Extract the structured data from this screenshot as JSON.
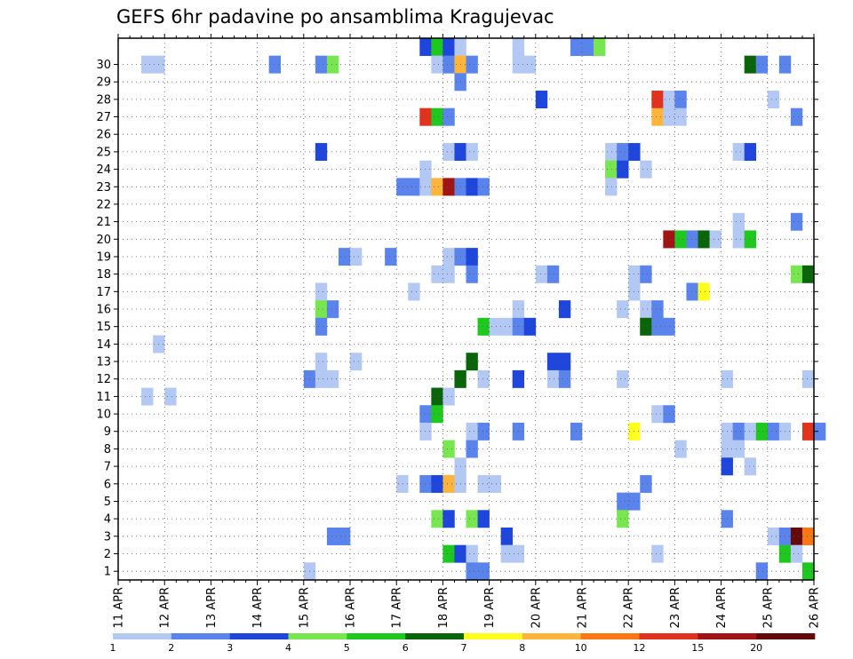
{
  "chart_data": {
    "type": "heatmap",
    "title": "GEFS 6hr padavine po ansamblima Kragujevac",
    "y_ticks": [
      "1",
      "2",
      "3",
      "4",
      "5",
      "6",
      "7",
      "8",
      "9",
      "10",
      "11",
      "12",
      "13",
      "14",
      "15",
      "16",
      "17",
      "18",
      "19",
      "20",
      "21",
      "22",
      "23",
      "24",
      "25",
      "26",
      "27",
      "28",
      "29",
      "30"
    ],
    "x_ticks": [
      "11 APR",
      "12 APR",
      "13 APR",
      "14 APR",
      "15 APR",
      "16 APR",
      "17 APR",
      "18 APR",
      "19 APR",
      "20 APR",
      "21 APR",
      "22 APR",
      "23 APR",
      "24 APR",
      "25 APR",
      "26 APR"
    ],
    "grid": true,
    "colorbar": {
      "labels": [
        "1",
        "2",
        "3",
        "4",
        "5",
        "6",
        "7",
        "8",
        "10",
        "12",
        "15",
        "20"
      ],
      "colors": [
        "#b4c8f4",
        "#5a84ec",
        "#1e46dc",
        "#78e650",
        "#1ec81e",
        "#0a640a",
        "#ffff1e",
        "#ffb43c",
        "#fa7814",
        "#e1321e",
        "#a01414",
        "#640a0a"
      ]
    },
    "cells": [
      {
        "m": 30,
        "t": 26,
        "v": 3
      },
      {
        "m": 30,
        "t": 27,
        "v": 5
      },
      {
        "m": 30,
        "t": 28,
        "v": 3
      },
      {
        "m": 30,
        "t": 29,
        "v": 1
      },
      {
        "m": 30,
        "t": 34,
        "v": 1
      },
      {
        "m": 30,
        "t": 39,
        "v": 2
      },
      {
        "m": 30,
        "t": 40,
        "v": 2
      },
      {
        "m": 30,
        "t": 41,
        "v": 4
      },
      {
        "m": 29,
        "t": 2,
        "v": 1
      },
      {
        "m": 29,
        "t": 3,
        "v": 1
      },
      {
        "m": 29,
        "t": 13,
        "v": 2
      },
      {
        "m": 29,
        "t": 17,
        "v": 2
      },
      {
        "m": 29,
        "t": 18,
        "v": 4
      },
      {
        "m": 29,
        "t": 27,
        "v": 1
      },
      {
        "m": 29,
        "t": 28,
        "v": 2
      },
      {
        "m": 29,
        "t": 29,
        "v": 8
      },
      {
        "m": 29,
        "t": 30,
        "v": 2
      },
      {
        "m": 29,
        "t": 34,
        "v": 1
      },
      {
        "m": 29,
        "t": 35,
        "v": 1
      },
      {
        "m": 29,
        "t": 54,
        "v": 6
      },
      {
        "m": 29,
        "t": 55,
        "v": 2
      },
      {
        "m": 29,
        "t": 57,
        "v": 2
      },
      {
        "m": 28,
        "t": 29,
        "v": 2
      },
      {
        "m": 27,
        "t": 36,
        "v": 3
      },
      {
        "m": 27,
        "t": 46,
        "v": 12
      },
      {
        "m": 27,
        "t": 47,
        "v": 1
      },
      {
        "m": 27,
        "t": 48,
        "v": 2
      },
      {
        "m": 27,
        "t": 56,
        "v": 1
      },
      {
        "m": 26,
        "t": 26,
        "v": 12
      },
      {
        "m": 26,
        "t": 27,
        "v": 5
      },
      {
        "m": 26,
        "t": 28,
        "v": 2
      },
      {
        "m": 26,
        "t": 46,
        "v": 8
      },
      {
        "m": 26,
        "t": 47,
        "v": 1
      },
      {
        "m": 26,
        "t": 48,
        "v": 1
      },
      {
        "m": 26,
        "t": 58,
        "v": 2
      },
      {
        "m": 24,
        "t": 17,
        "v": 3
      },
      {
        "m": 24,
        "t": 28,
        "v": 1
      },
      {
        "m": 24,
        "t": 29,
        "v": 3
      },
      {
        "m": 24,
        "t": 30,
        "v": 1
      },
      {
        "m": 24,
        "t": 42,
        "v": 1
      },
      {
        "m": 24,
        "t": 43,
        "v": 2
      },
      {
        "m": 24,
        "t": 44,
        "v": 3
      },
      {
        "m": 24,
        "t": 53,
        "v": 1
      },
      {
        "m": 24,
        "t": 54,
        "v": 3
      },
      {
        "m": 23,
        "t": 26,
        "v": 1
      },
      {
        "m": 23,
        "t": 42,
        "v": 4
      },
      {
        "m": 23,
        "t": 43,
        "v": 3
      },
      {
        "m": 23,
        "t": 45,
        "v": 1
      },
      {
        "m": 22,
        "t": 24,
        "v": 2
      },
      {
        "m": 22,
        "t": 25,
        "v": 2
      },
      {
        "m": 22,
        "t": 26,
        "v": 1
      },
      {
        "m": 22,
        "t": 27,
        "v": 8
      },
      {
        "m": 22,
        "t": 28,
        "v": 15
      },
      {
        "m": 22,
        "t": 29,
        "v": 2
      },
      {
        "m": 22,
        "t": 30,
        "v": 3
      },
      {
        "m": 22,
        "t": 31,
        "v": 2
      },
      {
        "m": 22,
        "t": 42,
        "v": 1
      },
      {
        "m": 20,
        "t": 53,
        "v": 1
      },
      {
        "m": 20,
        "t": 58,
        "v": 2
      },
      {
        "m": 19,
        "t": 47,
        "v": 15
      },
      {
        "m": 19,
        "t": 48,
        "v": 5
      },
      {
        "m": 19,
        "t": 49,
        "v": 2
      },
      {
        "m": 19,
        "t": 50,
        "v": 6
      },
      {
        "m": 19,
        "t": 51,
        "v": 1
      },
      {
        "m": 19,
        "t": 53,
        "v": 1
      },
      {
        "m": 19,
        "t": 54,
        "v": 5
      },
      {
        "m": 18,
        "t": 19,
        "v": 2
      },
      {
        "m": 18,
        "t": 20,
        "v": 1
      },
      {
        "m": 18,
        "t": 23,
        "v": 2
      },
      {
        "m": 18,
        "t": 28,
        "v": 1
      },
      {
        "m": 18,
        "t": 29,
        "v": 2
      },
      {
        "m": 18,
        "t": 30,
        "v": 3
      },
      {
        "m": 17,
        "t": 28,
        "v": 1
      },
      {
        "m": 17,
        "t": 27,
        "v": 1
      },
      {
        "m": 17,
        "t": 30,
        "v": 2
      },
      {
        "m": 17,
        "t": 36,
        "v": 1
      },
      {
        "m": 17,
        "t": 37,
        "v": 2
      },
      {
        "m": 17,
        "t": 44,
        "v": 1
      },
      {
        "m": 17,
        "t": 45,
        "v": 2
      },
      {
        "m": 17,
        "t": 58,
        "v": 4
      },
      {
        "m": 17,
        "t": 59,
        "v": 6
      },
      {
        "m": 16,
        "t": 17,
        "v": 1
      },
      {
        "m": 16,
        "t": 25,
        "v": 1
      },
      {
        "m": 16,
        "t": 44,
        "v": 1
      },
      {
        "m": 16,
        "t": 49,
        "v": 2
      },
      {
        "m": 16,
        "t": 50,
        "v": 7
      },
      {
        "m": 15,
        "t": 17,
        "v": 4
      },
      {
        "m": 15,
        "t": 18,
        "v": 2
      },
      {
        "m": 15,
        "t": 34,
        "v": 1
      },
      {
        "m": 15,
        "t": 38,
        "v": 3
      },
      {
        "m": 15,
        "t": 43,
        "v": 1
      },
      {
        "m": 15,
        "t": 45,
        "v": 1
      },
      {
        "m": 15,
        "t": 46,
        "v": 2
      },
      {
        "m": 14,
        "t": 17,
        "v": 2
      },
      {
        "m": 14,
        "t": 31,
        "v": 5
      },
      {
        "m": 14,
        "t": 32,
        "v": 1
      },
      {
        "m": 14,
        "t": 33,
        "v": 1
      },
      {
        "m": 14,
        "t": 34,
        "v": 2
      },
      {
        "m": 14,
        "t": 35,
        "v": 3
      },
      {
        "m": 14,
        "t": 45,
        "v": 6
      },
      {
        "m": 14,
        "t": 46,
        "v": 2
      },
      {
        "m": 14,
        "t": 47,
        "v": 2
      },
      {
        "m": 13,
        "t": 3,
        "v": 1
      },
      {
        "m": 12,
        "t": 17,
        "v": 1
      },
      {
        "m": 12,
        "t": 20,
        "v": 1
      },
      {
        "m": 12,
        "t": 30,
        "v": 6
      },
      {
        "m": 12,
        "t": 37,
        "v": 3
      },
      {
        "m": 12,
        "t": 38,
        "v": 3
      },
      {
        "m": 11,
        "t": 16,
        "v": 2
      },
      {
        "m": 11,
        "t": 17,
        "v": 1
      },
      {
        "m": 11,
        "t": 18,
        "v": 1
      },
      {
        "m": 11,
        "t": 29,
        "v": 6
      },
      {
        "m": 11,
        "t": 31,
        "v": 1
      },
      {
        "m": 11,
        "t": 34,
        "v": 3
      },
      {
        "m": 11,
        "t": 37,
        "v": 1
      },
      {
        "m": 11,
        "t": 38,
        "v": 2
      },
      {
        "m": 11,
        "t": 43,
        "v": 1
      },
      {
        "m": 11,
        "t": 52,
        "v": 1
      },
      {
        "m": 11,
        "t": 59,
        "v": 1
      },
      {
        "m": 10,
        "t": 2,
        "v": 1
      },
      {
        "m": 10,
        "t": 4,
        "v": 1
      },
      {
        "m": 10,
        "t": 27,
        "v": 6
      },
      {
        "m": 10,
        "t": 28,
        "v": 1
      },
      {
        "m": 9,
        "t": 26,
        "v": 2
      },
      {
        "m": 9,
        "t": 27,
        "v": 5
      },
      {
        "m": 9,
        "t": 46,
        "v": 1
      },
      {
        "m": 9,
        "t": 47,
        "v": 2
      },
      {
        "m": 8,
        "t": 26,
        "v": 1
      },
      {
        "m": 8,
        "t": 30,
        "v": 1
      },
      {
        "m": 8,
        "t": 31,
        "v": 2
      },
      {
        "m": 8,
        "t": 34,
        "v": 2
      },
      {
        "m": 8,
        "t": 39,
        "v": 2
      },
      {
        "m": 8,
        "t": 44,
        "v": 7
      },
      {
        "m": 8,
        "t": 52,
        "v": 1
      },
      {
        "m": 8,
        "t": 53,
        "v": 2
      },
      {
        "m": 8,
        "t": 54,
        "v": 1
      },
      {
        "m": 8,
        "t": 55,
        "v": 5
      },
      {
        "m": 8,
        "t": 56,
        "v": 2
      },
      {
        "m": 8,
        "t": 57,
        "v": 1
      },
      {
        "m": 8,
        "t": 59,
        "v": 12
      },
      {
        "m": 8,
        "t": 60,
        "v": 2
      },
      {
        "m": 7,
        "t": 28,
        "v": 4
      },
      {
        "m": 7,
        "t": 30,
        "v": 2
      },
      {
        "m": 7,
        "t": 48,
        "v": 1
      },
      {
        "m": 7,
        "t": 52,
        "v": 1
      },
      {
        "m": 7,
        "t": 53,
        "v": 1
      },
      {
        "m": 6,
        "t": 29,
        "v": 1
      },
      {
        "m": 6,
        "t": 52,
        "v": 3
      },
      {
        "m": 6,
        "t": 54,
        "v": 1
      },
      {
        "m": 5,
        "t": 24,
        "v": 1
      },
      {
        "m": 5,
        "t": 26,
        "v": 2
      },
      {
        "m": 5,
        "t": 27,
        "v": 3
      },
      {
        "m": 5,
        "t": 28,
        "v": 8
      },
      {
        "m": 5,
        "t": 29,
        "v": 1
      },
      {
        "m": 5,
        "t": 31,
        "v": 1
      },
      {
        "m": 5,
        "t": 32,
        "v": 1
      },
      {
        "m": 5,
        "t": 45,
        "v": 2
      },
      {
        "m": 4,
        "t": 43,
        "v": 2
      },
      {
        "m": 4,
        "t": 44,
        "v": 2
      },
      {
        "m": 3,
        "t": 27,
        "v": 4
      },
      {
        "m": 3,
        "t": 28,
        "v": 3
      },
      {
        "m": 3,
        "t": 30,
        "v": 4
      },
      {
        "m": 3,
        "t": 31,
        "v": 3
      },
      {
        "m": 3,
        "t": 43,
        "v": 4
      },
      {
        "m": 3,
        "t": 52,
        "v": 2
      },
      {
        "m": 2,
        "t": 18,
        "v": 2
      },
      {
        "m": 2,
        "t": 19,
        "v": 2
      },
      {
        "m": 2,
        "t": 33,
        "v": 3
      },
      {
        "m": 2,
        "t": 56,
        "v": 1
      },
      {
        "m": 2,
        "t": 57,
        "v": 2
      },
      {
        "m": 2,
        "t": 58,
        "v": 20
      },
      {
        "m": 2,
        "t": 59,
        "v": 10
      },
      {
        "m": 1,
        "t": 28,
        "v": 5
      },
      {
        "m": 1,
        "t": 29,
        "v": 3
      },
      {
        "m": 1,
        "t": 30,
        "v": 1
      },
      {
        "m": 1,
        "t": 33,
        "v": 1
      },
      {
        "m": 1,
        "t": 34,
        "v": 1
      },
      {
        "m": 1,
        "t": 46,
        "v": 1
      },
      {
        "m": 1,
        "t": 57,
        "v": 5
      },
      {
        "m": 1,
        "t": 58,
        "v": 1
      },
      {
        "m": 0,
        "t": 16,
        "v": 1
      },
      {
        "m": 0,
        "t": 30,
        "v": 2
      },
      {
        "m": 0,
        "t": 31,
        "v": 2
      },
      {
        "m": 0,
        "t": 55,
        "v": 2
      },
      {
        "m": 0,
        "t": 59,
        "v": 5
      }
    ]
  }
}
